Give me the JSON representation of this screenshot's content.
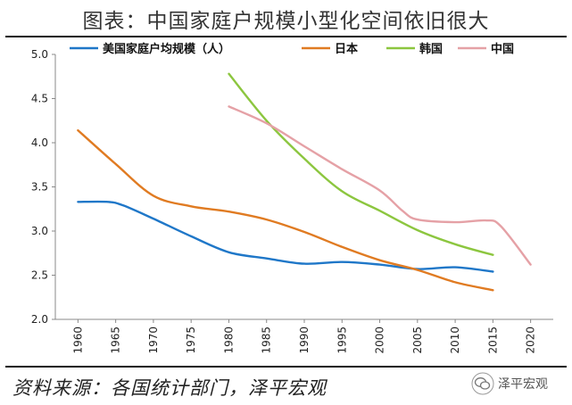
{
  "title": "图表：中国家庭户规模小型化空间依旧很大",
  "source": "资料来源：各国统计部门，泽平宏观",
  "watermark": {
    "text": "泽平宏观",
    "icon": "wechat-logo-icon"
  },
  "chart_data": {
    "type": "line",
    "title": "图表：中国家庭户规模小型化空间依旧很大",
    "xlabel": "",
    "ylabel": "",
    "xlim": [
      1960,
      2020
    ],
    "ylim": [
      2.0,
      5.0
    ],
    "x_ticks": [
      1960,
      1965,
      1970,
      1975,
      1980,
      1985,
      1990,
      1995,
      2000,
      2005,
      2010,
      2015,
      2020
    ],
    "y_ticks": [
      "2.0",
      "2.5",
      "3.0",
      "3.5",
      "4.0",
      "4.5",
      "5.0"
    ],
    "grid": false,
    "legend_position": "top",
    "series": [
      {
        "name": "美国家庭户均规模（人）",
        "color": "#1f77c8",
        "x": [
          1960,
          1964,
          1966,
          1970,
          1975,
          1980,
          1985,
          1990,
          1995,
          2000,
          2005,
          2010,
          2015
        ],
        "y": [
          3.33,
          3.33,
          3.29,
          3.14,
          2.94,
          2.76,
          2.69,
          2.63,
          2.65,
          2.62,
          2.57,
          2.59,
          2.54
        ]
      },
      {
        "name": "日本",
        "color": "#e07b22",
        "x": [
          1960,
          1965,
          1970,
          1975,
          1980,
          1985,
          1990,
          1995,
          2000,
          2005,
          2010,
          2015
        ],
        "y": [
          4.14,
          3.76,
          3.4,
          3.28,
          3.22,
          3.13,
          2.99,
          2.82,
          2.67,
          2.56,
          2.42,
          2.33
        ]
      },
      {
        "name": "韩国",
        "color": "#8cc63f",
        "x": [
          1980,
          1985,
          1990,
          1995,
          2000,
          2005,
          2010,
          2015
        ],
        "y": [
          4.78,
          4.25,
          3.82,
          3.45,
          3.23,
          3.01,
          2.85,
          2.73
        ]
      },
      {
        "name": "中国",
        "color": "#e5a1a6",
        "x": [
          1980,
          1985,
          1990,
          1995,
          2000,
          2003,
          2005,
          2010,
          2014,
          2016,
          2020
        ],
        "y": [
          4.41,
          4.22,
          3.96,
          3.7,
          3.46,
          3.23,
          3.13,
          3.1,
          3.12,
          3.06,
          2.62
        ]
      }
    ]
  }
}
